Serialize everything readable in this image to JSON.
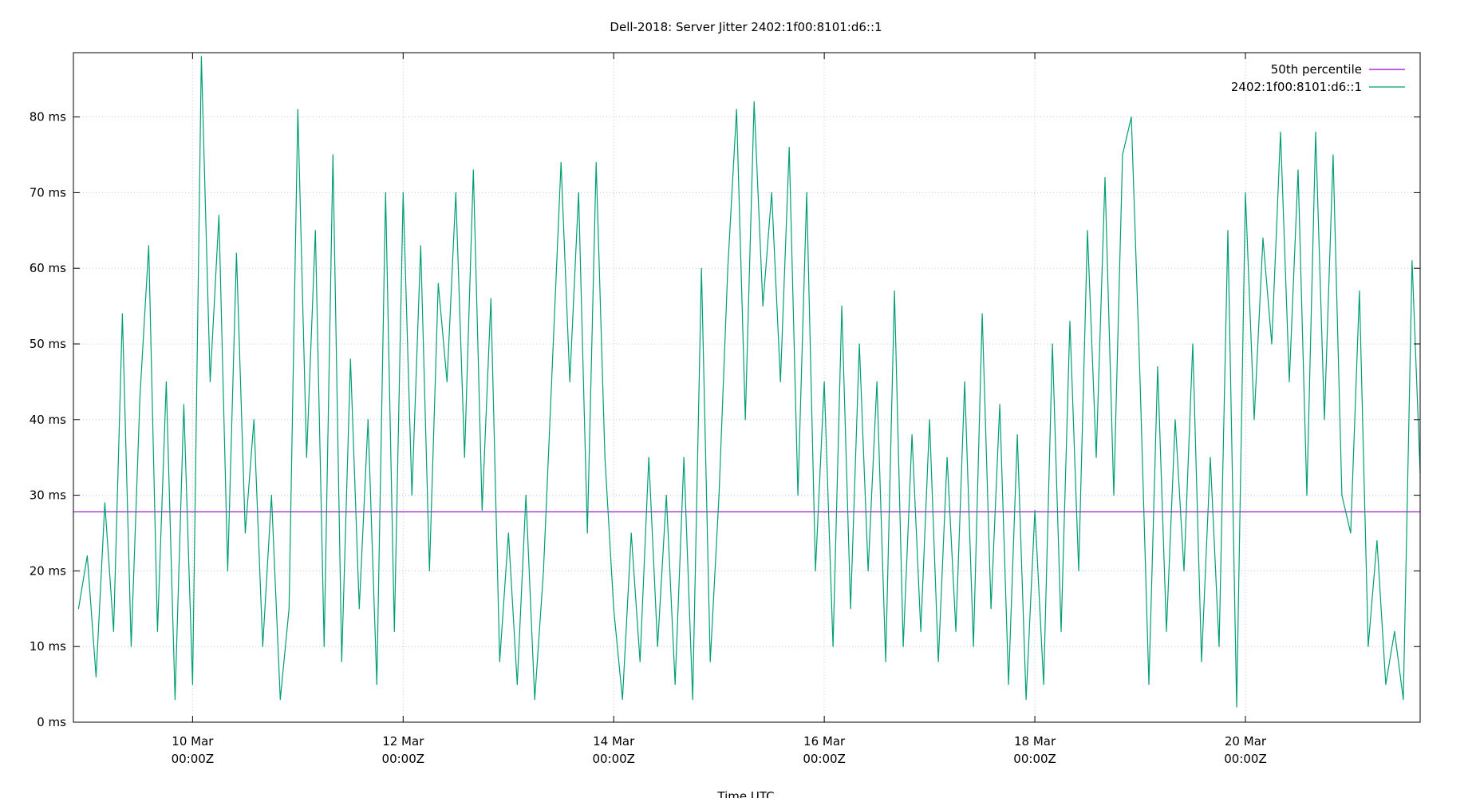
{
  "chart_data": {
    "type": "line",
    "title": "Dell-2018: Server Jitter 2402:1f00:8101:d6::1",
    "xlabel": "Time UTC",
    "ylabel": "",
    "xlim": [
      "08 Mar 20:50",
      "21 Mar 15:50"
    ],
    "ylim": [
      0,
      88.5
    ],
    "grid": true,
    "legend_placement": "top-right",
    "yticks": [
      {
        "v": 0,
        "label": "0 ms"
      },
      {
        "v": 10,
        "label": "10 ms"
      },
      {
        "v": 20,
        "label": "20 ms"
      },
      {
        "v": 30,
        "label": "30 ms"
      },
      {
        "v": 40,
        "label": "40 ms"
      },
      {
        "v": 50,
        "label": "50 ms"
      },
      {
        "v": 60,
        "label": "60 ms"
      },
      {
        "v": 70,
        "label": "70 ms"
      },
      {
        "v": 80,
        "label": "80 ms"
      }
    ],
    "xticks": [
      {
        "t": "10 Mar 00:00",
        "label1": "10 Mar",
        "label2": "00:00Z"
      },
      {
        "t": "12 Mar 00:00",
        "label1": "12 Mar",
        "label2": "00:00Z"
      },
      {
        "t": "14 Mar 00:00",
        "label1": "14 Mar",
        "label2": "00:00Z"
      },
      {
        "t": "16 Mar 00:00",
        "label1": "16 Mar",
        "label2": "00:00Z"
      },
      {
        "t": "18 Mar 00:00",
        "label1": "18 Mar",
        "label2": "00:00Z"
      },
      {
        "t": "20 Mar 00:00",
        "label1": "20 Mar",
        "label2": "00:00Z"
      }
    ],
    "series": [
      {
        "name": "50th percentile",
        "color": "#9400d3",
        "constant": 27.8
      },
      {
        "name": "2402:1f00:8101:d6::1",
        "color": "#009e73",
        "points": [
          [
            "08 Mar 22:00",
            15
          ],
          [
            "09 Mar 00:00",
            22
          ],
          [
            "09 Mar 02:00",
            6
          ],
          [
            "09 Mar 04:00",
            29
          ],
          [
            "09 Mar 06:00",
            12
          ],
          [
            "09 Mar 08:00",
            54
          ],
          [
            "09 Mar 10:00",
            10
          ],
          [
            "09 Mar 12:00",
            43
          ],
          [
            "09 Mar 14:00",
            63
          ],
          [
            "09 Mar 16:00",
            12
          ],
          [
            "09 Mar 18:00",
            45
          ],
          [
            "09 Mar 20:00",
            3
          ],
          [
            "09 Mar 22:00",
            42
          ],
          [
            "10 Mar 00:00",
            5
          ],
          [
            "10 Mar 02:00",
            88
          ],
          [
            "10 Mar 04:00",
            45
          ],
          [
            "10 Mar 06:00",
            67
          ],
          [
            "10 Mar 08:00",
            20
          ],
          [
            "10 Mar 10:00",
            62
          ],
          [
            "10 Mar 12:00",
            25
          ],
          [
            "10 Mar 14:00",
            40
          ],
          [
            "10 Mar 16:00",
            10
          ],
          [
            "10 Mar 18:00",
            30
          ],
          [
            "10 Mar 20:00",
            3
          ],
          [
            "10 Mar 22:00",
            15
          ],
          [
            "11 Mar 00:00",
            81
          ],
          [
            "11 Mar 02:00",
            35
          ],
          [
            "11 Mar 04:00",
            65
          ],
          [
            "11 Mar 06:00",
            10
          ],
          [
            "11 Mar 08:00",
            75
          ],
          [
            "11 Mar 10:00",
            8
          ],
          [
            "11 Mar 12:00",
            48
          ],
          [
            "11 Mar 14:00",
            15
          ],
          [
            "11 Mar 16:00",
            40
          ],
          [
            "11 Mar 18:00",
            5
          ],
          [
            "11 Mar 20:00",
            70
          ],
          [
            "11 Mar 22:00",
            12
          ],
          [
            "12 Mar 00:00",
            70
          ],
          [
            "12 Mar 02:00",
            30
          ],
          [
            "12 Mar 04:00",
            63
          ],
          [
            "12 Mar 06:00",
            20
          ],
          [
            "12 Mar 08:00",
            58
          ],
          [
            "12 Mar 10:00",
            45
          ],
          [
            "12 Mar 12:00",
            70
          ],
          [
            "12 Mar 14:00",
            35
          ],
          [
            "12 Mar 16:00",
            73
          ],
          [
            "12 Mar 18:00",
            28
          ],
          [
            "12 Mar 20:00",
            56
          ],
          [
            "12 Mar 22:00",
            8
          ],
          [
            "13 Mar 00:00",
            25
          ],
          [
            "13 Mar 02:00",
            5
          ],
          [
            "13 Mar 04:00",
            30
          ],
          [
            "13 Mar 06:00",
            3
          ],
          [
            "13 Mar 08:00",
            20
          ],
          [
            "13 Mar 10:00",
            47
          ],
          [
            "13 Mar 12:00",
            74
          ],
          [
            "13 Mar 14:00",
            45
          ],
          [
            "13 Mar 16:00",
            70
          ],
          [
            "13 Mar 18:00",
            25
          ],
          [
            "13 Mar 20:00",
            74
          ],
          [
            "13 Mar 22:00",
            35
          ],
          [
            "14 Mar 00:00",
            15
          ],
          [
            "14 Mar 02:00",
            3
          ],
          [
            "14 Mar 04:00",
            25
          ],
          [
            "14 Mar 06:00",
            8
          ],
          [
            "14 Mar 08:00",
            35
          ],
          [
            "14 Mar 10:00",
            10
          ],
          [
            "14 Mar 12:00",
            30
          ],
          [
            "14 Mar 14:00",
            5
          ],
          [
            "14 Mar 16:00",
            35
          ],
          [
            "14 Mar 18:00",
            3
          ],
          [
            "14 Mar 20:00",
            60
          ],
          [
            "14 Mar 22:00",
            8
          ],
          [
            "15 Mar 00:00",
            30
          ],
          [
            "15 Mar 02:00",
            60
          ],
          [
            "15 Mar 04:00",
            81
          ],
          [
            "15 Mar 06:00",
            40
          ],
          [
            "15 Mar 08:00",
            82
          ],
          [
            "15 Mar 10:00",
            55
          ],
          [
            "15 Mar 12:00",
            70
          ],
          [
            "15 Mar 14:00",
            45
          ],
          [
            "15 Mar 16:00",
            76
          ],
          [
            "15 Mar 18:00",
            30
          ],
          [
            "15 Mar 20:00",
            70
          ],
          [
            "15 Mar 22:00",
            20
          ],
          [
            "16 Mar 00:00",
            45
          ],
          [
            "16 Mar 02:00",
            10
          ],
          [
            "16 Mar 04:00",
            55
          ],
          [
            "16 Mar 06:00",
            15
          ],
          [
            "16 Mar 08:00",
            50
          ],
          [
            "16 Mar 10:00",
            20
          ],
          [
            "16 Mar 12:00",
            45
          ],
          [
            "16 Mar 14:00",
            8
          ],
          [
            "16 Mar 16:00",
            57
          ],
          [
            "16 Mar 18:00",
            10
          ],
          [
            "16 Mar 20:00",
            38
          ],
          [
            "16 Mar 22:00",
            12
          ],
          [
            "17 Mar 00:00",
            40
          ],
          [
            "17 Mar 02:00",
            8
          ],
          [
            "17 Mar 04:00",
            35
          ],
          [
            "17 Mar 06:00",
            12
          ],
          [
            "17 Mar 08:00",
            45
          ],
          [
            "17 Mar 10:00",
            10
          ],
          [
            "17 Mar 12:00",
            54
          ],
          [
            "17 Mar 14:00",
            15
          ],
          [
            "17 Mar 16:00",
            42
          ],
          [
            "17 Mar 18:00",
            5
          ],
          [
            "17 Mar 20:00",
            38
          ],
          [
            "17 Mar 22:00",
            3
          ],
          [
            "18 Mar 00:00",
            28
          ],
          [
            "18 Mar 02:00",
            5
          ],
          [
            "18 Mar 04:00",
            50
          ],
          [
            "18 Mar 06:00",
            12
          ],
          [
            "18 Mar 08:00",
            53
          ],
          [
            "18 Mar 10:00",
            20
          ],
          [
            "18 Mar 12:00",
            65
          ],
          [
            "18 Mar 14:00",
            35
          ],
          [
            "18 Mar 16:00",
            72
          ],
          [
            "18 Mar 18:00",
            30
          ],
          [
            "18 Mar 20:00",
            75
          ],
          [
            "18 Mar 22:00",
            80
          ],
          [
            "19 Mar 00:00",
            45
          ],
          [
            "19 Mar 02:00",
            5
          ],
          [
            "19 Mar 04:00",
            47
          ],
          [
            "19 Mar 06:00",
            12
          ],
          [
            "19 Mar 08:00",
            40
          ],
          [
            "19 Mar 10:00",
            20
          ],
          [
            "19 Mar 12:00",
            50
          ],
          [
            "19 Mar 14:00",
            8
          ],
          [
            "19 Mar 16:00",
            35
          ],
          [
            "19 Mar 18:00",
            10
          ],
          [
            "19 Mar 20:00",
            65
          ],
          [
            "19 Mar 22:00",
            2
          ],
          [
            "20 Mar 00:00",
            70
          ],
          [
            "20 Mar 02:00",
            40
          ],
          [
            "20 Mar 04:00",
            64
          ],
          [
            "20 Mar 06:00",
            50
          ],
          [
            "20 Mar 08:00",
            78
          ],
          [
            "20 Mar 10:00",
            45
          ],
          [
            "20 Mar 12:00",
            73
          ],
          [
            "20 Mar 14:00",
            30
          ],
          [
            "20 Mar 16:00",
            78
          ],
          [
            "20 Mar 18:00",
            40
          ],
          [
            "20 Mar 20:00",
            75
          ],
          [
            "20 Mar 22:00",
            30
          ],
          [
            "21 Mar 00:00",
            25
          ],
          [
            "21 Mar 02:00",
            57
          ],
          [
            "21 Mar 04:00",
            10
          ],
          [
            "21 Mar 06:00",
            24
          ],
          [
            "21 Mar 08:00",
            5
          ],
          [
            "21 Mar 10:00",
            12
          ],
          [
            "21 Mar 12:00",
            3
          ],
          [
            "21 Mar 14:00",
            61
          ],
          [
            "21 Mar 15:50",
            33
          ]
        ]
      }
    ]
  }
}
